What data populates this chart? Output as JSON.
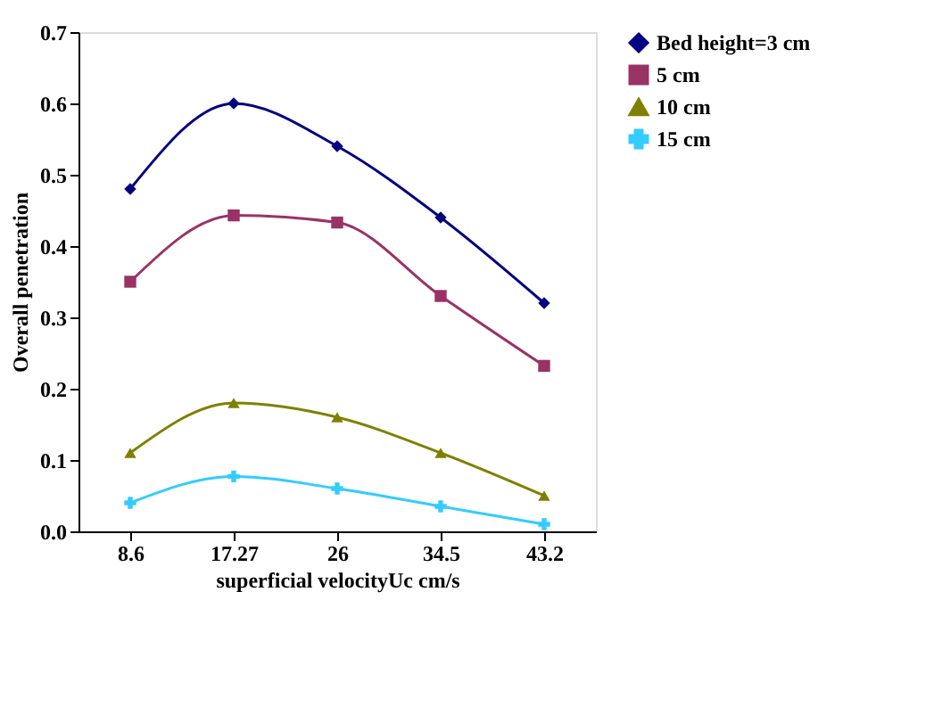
{
  "chart_data": {
    "type": "line",
    "xlabel": "superficial velocityUc cm/s",
    "ylabel": "Overall penetration",
    "categories": [
      "8.6",
      "17.27",
      "26",
      "34.5",
      "43.2"
    ],
    "ylim": [
      0,
      0.7
    ],
    "yticks": [
      {
        "value": 0,
        "label": "0.0"
      },
      0.1,
      0.2,
      0.3,
      0.4,
      0.5,
      0.6,
      0.7
    ],
    "grid": false,
    "legend": "top right",
    "line_style": "solid",
    "series": [
      {
        "name": "Bed height=3 cm",
        "color": "#000080",
        "marker": "diamond",
        "values": [
          0.48,
          0.6,
          0.54,
          0.44,
          0.32
        ]
      },
      {
        "name": "5 cm",
        "color": "#993366",
        "marker": "square",
        "values": [
          0.35,
          0.443,
          0.433,
          0.33,
          0.232
        ]
      },
      {
        "name": "10 cm",
        "color": "#808000",
        "marker": "triangle",
        "values": [
          0.11,
          0.18,
          0.16,
          0.11,
          0.05
        ]
      },
      {
        "name": "15 cm",
        "color": "#33ccff",
        "marker": "cross",
        "values": [
          0.04,
          0.077,
          0.06,
          0.035,
          0.01
        ]
      }
    ]
  }
}
